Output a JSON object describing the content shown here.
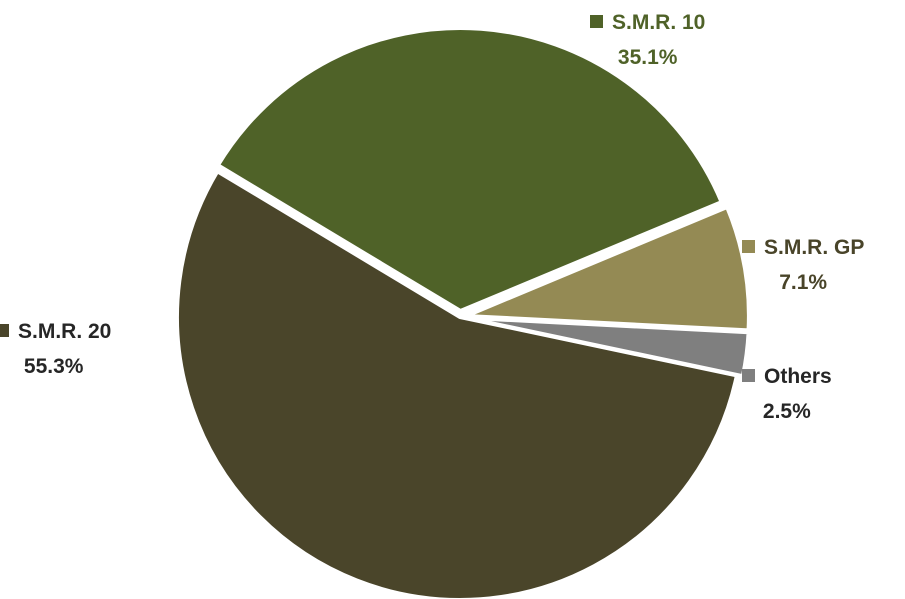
{
  "chart_data": {
    "type": "pie",
    "title": "",
    "slices": [
      {
        "name": "S.M.R. 10",
        "value": 35.1,
        "label": "35.1%",
        "color": "#4F6228",
        "label_color": "#4F6228"
      },
      {
        "name": "S.M.R. GP",
        "value": 7.1,
        "label": "7.1%",
        "color": "#948A54",
        "label_color": "#494429"
      },
      {
        "name": "Others",
        "value": 2.5,
        "label": "2.5%",
        "color": "#7F7F7F",
        "label_color": "#262626"
      },
      {
        "name": "S.M.R. 20",
        "value": 55.3,
        "label": "55.3%",
        "color": "#4A452A",
        "label_color": "#262626"
      }
    ],
    "exploded": [
      "S.M.R. 10",
      "S.M.R. GP",
      "Others"
    ],
    "legend": "inline-labels"
  }
}
